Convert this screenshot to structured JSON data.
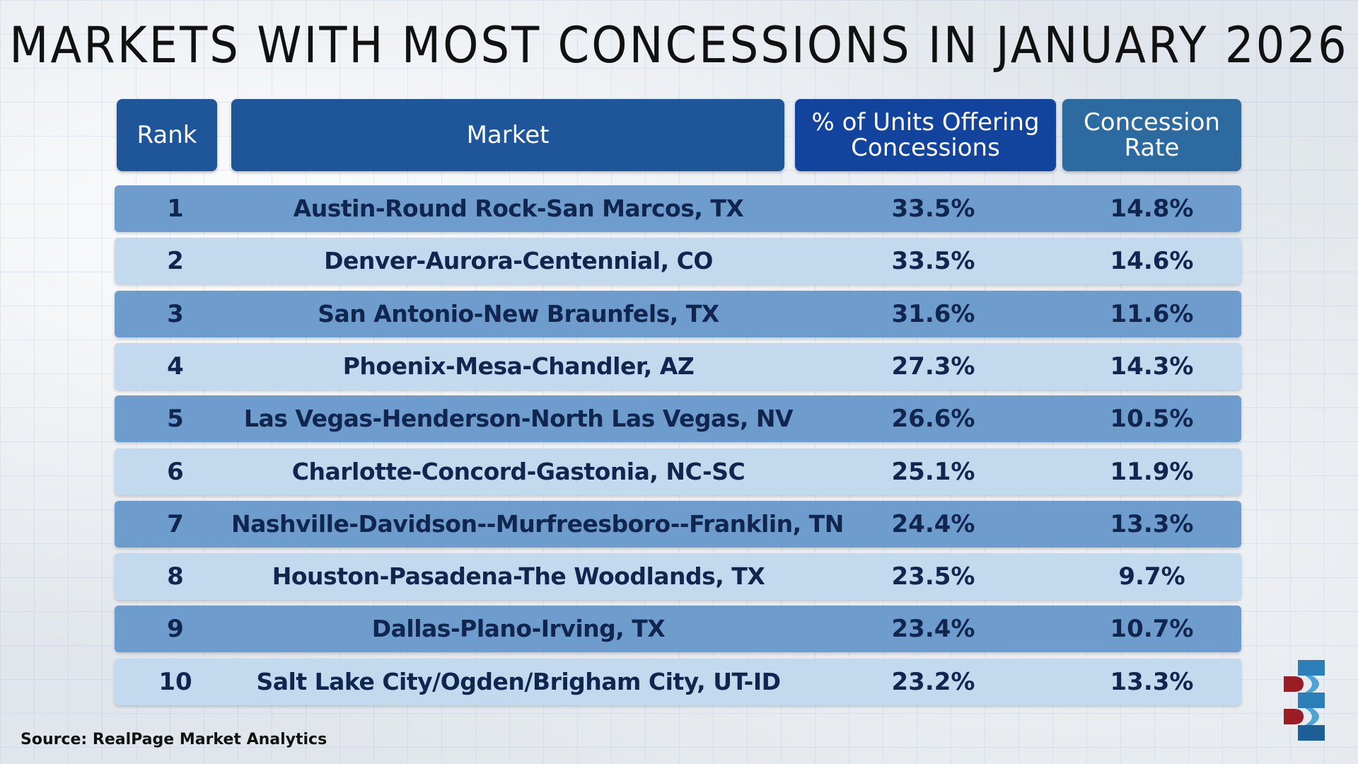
{
  "title": "Markets with most concessions in January 2026",
  "chart_data": {
    "type": "table",
    "columns": [
      "Rank",
      "Market",
      "% of Units Offering Concessions",
      "Concession Rate"
    ],
    "rows": [
      {
        "rank": "1",
        "market": "Austin-Round Rock-San Marcos, TX",
        "pct_units": "33.5%",
        "concession_rate": "14.8%"
      },
      {
        "rank": "2",
        "market": "Denver-Aurora-Centennial, CO",
        "pct_units": "33.5%",
        "concession_rate": "14.6%"
      },
      {
        "rank": "3",
        "market": "San Antonio-New Braunfels, TX",
        "pct_units": "31.6%",
        "concession_rate": "11.6%"
      },
      {
        "rank": "4",
        "market": "Phoenix-Mesa-Chandler, AZ",
        "pct_units": "27.3%",
        "concession_rate": "14.3%"
      },
      {
        "rank": "5",
        "market": "Las Vegas-Henderson-North Las Vegas, NV",
        "pct_units": "26.6%",
        "concession_rate": "10.5%"
      },
      {
        "rank": "6",
        "market": "Charlotte-Concord-Gastonia, NC-SC",
        "pct_units": "25.1%",
        "concession_rate": "11.9%"
      },
      {
        "rank": "7",
        "market": "Nashville-Davidson--Murfreesboro--Franklin, TN",
        "pct_units": "24.4%",
        "concession_rate": "13.3%"
      },
      {
        "rank": "8",
        "market": "Houston-Pasadena-The Woodlands, TX",
        "pct_units": "23.5%",
        "concession_rate": "9.7%"
      },
      {
        "rank": "9",
        "market": "Dallas-Plano-Irving, TX",
        "pct_units": "23.4%",
        "concession_rate": "10.7%"
      },
      {
        "rank": "10",
        "market": "Salt Lake City/Ogden/Brigham City, UT-ID",
        "pct_units": "23.2%",
        "concession_rate": "13.3%"
      }
    ]
  },
  "headers": {
    "rank": "Rank",
    "market": "Market",
    "pct_line1": "% of Units Offering",
    "pct_line2": "Concessions",
    "rate_line1": "Concession",
    "rate_line2": "Rate"
  },
  "source": "Source: RealPage Market Analytics",
  "colors": {
    "row_dark": "#6e9ccd",
    "row_light": "#c3d9ee",
    "header_blue": "#1f5599",
    "logo_red": "#9b1c24",
    "logo_blue": "#2b7fb8"
  }
}
